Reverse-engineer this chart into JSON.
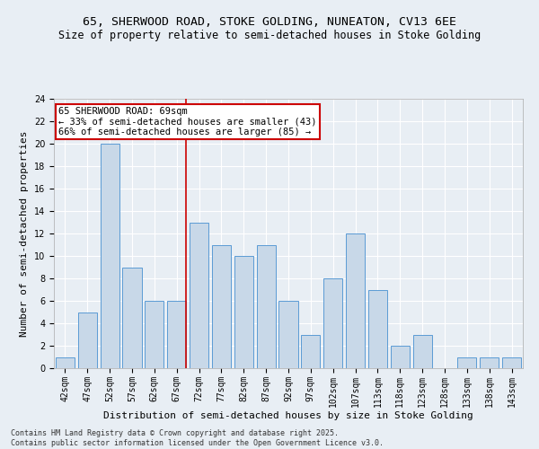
{
  "title1": "65, SHERWOOD ROAD, STOKE GOLDING, NUNEATON, CV13 6EE",
  "title2": "Size of property relative to semi-detached houses in Stoke Golding",
  "xlabel": "Distribution of semi-detached houses by size in Stoke Golding",
  "ylabel": "Number of semi-detached properties",
  "footer1": "Contains HM Land Registry data © Crown copyright and database right 2025.",
  "footer2": "Contains public sector information licensed under the Open Government Licence v3.0.",
  "categories": [
    "42sqm",
    "47sqm",
    "52sqm",
    "57sqm",
    "62sqm",
    "67sqm",
    "72sqm",
    "77sqm",
    "82sqm",
    "87sqm",
    "92sqm",
    "97sqm",
    "102sqm",
    "107sqm",
    "113sqm",
    "118sqm",
    "123sqm",
    "128sqm",
    "133sqm",
    "138sqm",
    "143sqm"
  ],
  "values": [
    1,
    5,
    20,
    9,
    6,
    6,
    13,
    11,
    10,
    11,
    6,
    3,
    8,
    12,
    7,
    2,
    3,
    0,
    1,
    1,
    1
  ],
  "bar_color": "#c8d8e8",
  "bar_edge_color": "#5b9bd5",
  "annotation_title": "65 SHERWOOD ROAD: 69sqm",
  "annotation_line1": "← 33% of semi-detached houses are smaller (43)",
  "annotation_line2": "66% of semi-detached houses are larger (85) →",
  "annotation_box_color": "#ffffff",
  "annotation_box_edge": "#cc0000",
  "highlight_line_color": "#cc0000",
  "ylim": [
    0,
    24
  ],
  "yticks": [
    0,
    2,
    4,
    6,
    8,
    10,
    12,
    14,
    16,
    18,
    20,
    22,
    24
  ],
  "bg_color": "#e8eef4",
  "grid_color": "#ffffff",
  "title_fontsize": 9.5,
  "subtitle_fontsize": 8.5,
  "axis_label_fontsize": 8,
  "tick_fontsize": 7,
  "annotation_fontsize": 7.5,
  "footer_fontsize": 6
}
